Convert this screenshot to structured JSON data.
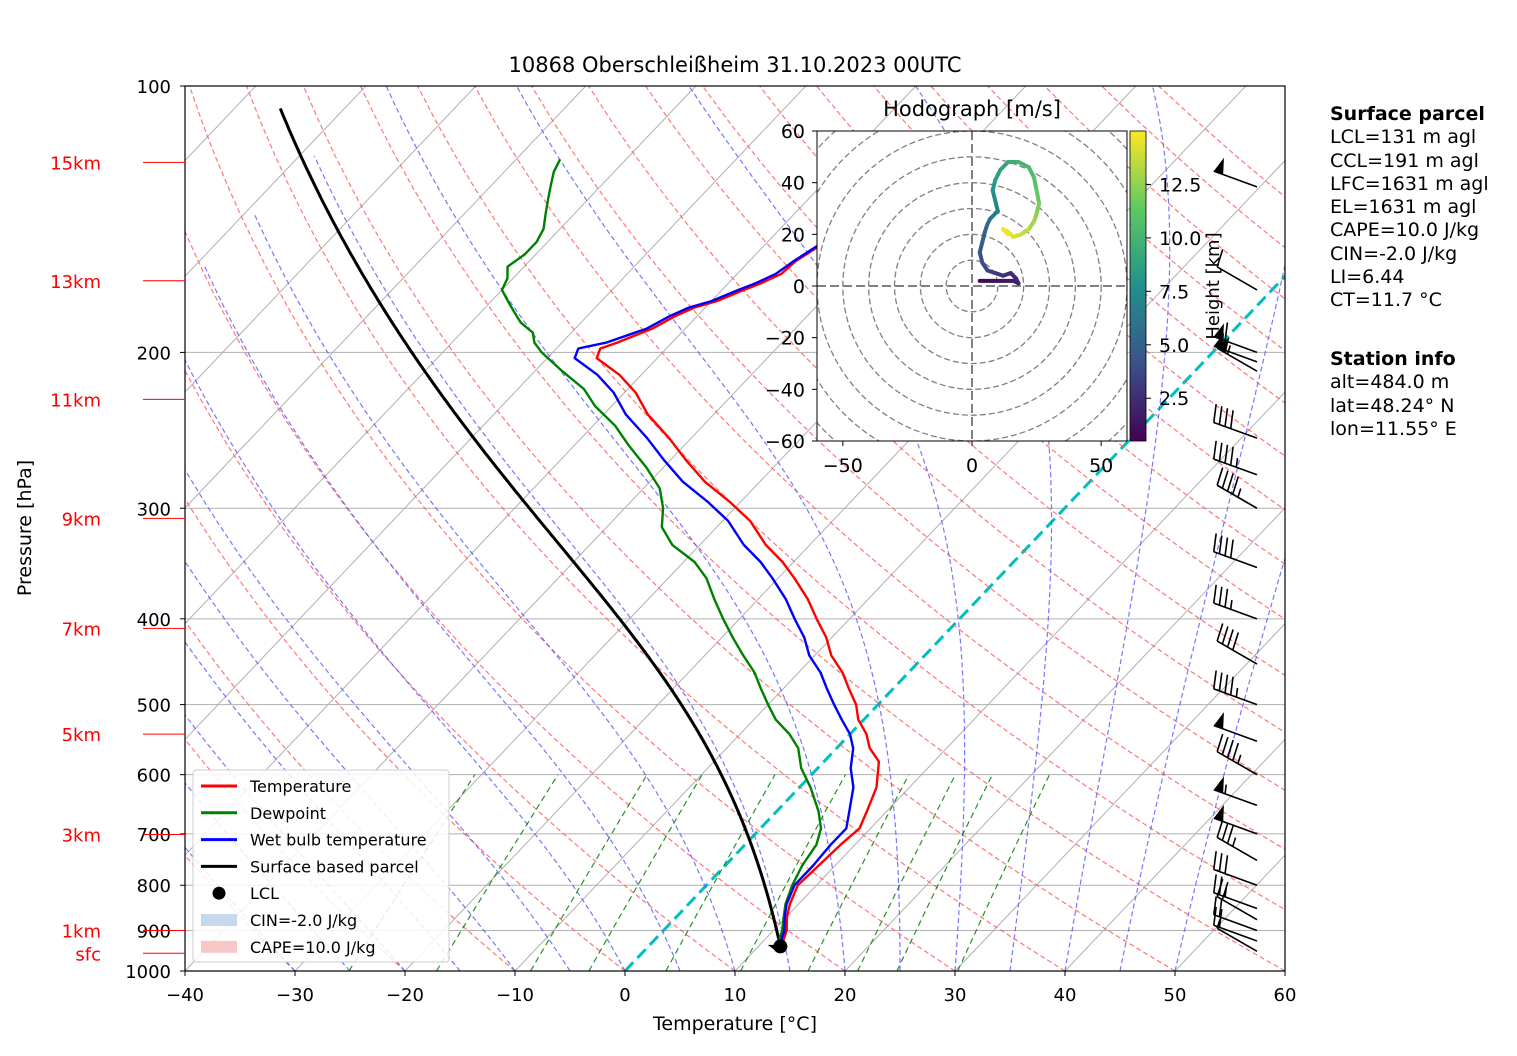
{
  "chart_data": {
    "type": "skew-t",
    "title": "10868 Oberschleißheim 31.10.2023 00UTC",
    "xlabel": "Temperature [°C]",
    "ylabel": "Pressure [hPa]",
    "xlim": [
      -40,
      60
    ],
    "ylim": [
      1000,
      100
    ],
    "y_scale": "log",
    "x_ticks": [
      "−40",
      "−30",
      "−20",
      "−10",
      "0",
      "10",
      "20",
      "30",
      "40",
      "50",
      "60"
    ],
    "y_ticks": [
      "100",
      "200",
      "300",
      "400",
      "500",
      "600",
      "700",
      "800",
      "900",
      "1000"
    ],
    "height_labels": [
      {
        "label": "sfc",
        "p": 955
      },
      {
        "label": "1km",
        "p": 900
      },
      {
        "label": "3km",
        "p": 701
      },
      {
        "label": "5km",
        "p": 540
      },
      {
        "label": "7km",
        "p": 410
      },
      {
        "label": "9km",
        "p": 308
      },
      {
        "label": "11km",
        "p": 226
      },
      {
        "label": "13km",
        "p": 166
      },
      {
        "label": "15km",
        "p": 122
      }
    ],
    "zero_isotherm_color": "#00bfbf",
    "series": [
      {
        "name": "Temperature",
        "color": "#ff0000",
        "points": [
          [
            12.3,
            950
          ],
          [
            11.9,
            930
          ],
          [
            11.2,
            900
          ],
          [
            10.1,
            870
          ],
          [
            9.2,
            840
          ],
          [
            8.3,
            800
          ],
          [
            8.5,
            760
          ],
          [
            8.7,
            720
          ],
          [
            9.0,
            690
          ],
          [
            8.2,
            660
          ],
          [
            7.0,
            620
          ],
          [
            5.0,
            580
          ],
          [
            3.0,
            560
          ],
          [
            1.5,
            540
          ],
          [
            -0.5,
            520
          ],
          [
            -2.0,
            500
          ],
          [
            -4.0,
            480
          ],
          [
            -6.0,
            460
          ],
          [
            -8.5,
            440
          ],
          [
            -10.5,
            420
          ],
          [
            -13.0,
            400
          ],
          [
            -15.5,
            380
          ],
          [
            -18.5,
            360
          ],
          [
            -21.0,
            345
          ],
          [
            -24.0,
            330
          ],
          [
            -27.5,
            310
          ],
          [
            -31.0,
            295
          ],
          [
            -35.0,
            280
          ],
          [
            -38.5,
            265
          ],
          [
            -42.0,
            250
          ],
          [
            -46.0,
            235
          ],
          [
            -49.0,
            222
          ],
          [
            -52.0,
            212
          ],
          [
            -55.5,
            203
          ],
          [
            -56.0,
            198
          ],
          [
            -55.0,
            195
          ],
          [
            -53.0,
            188
          ],
          [
            -52.0,
            182
          ],
          [
            -51.0,
            178
          ],
          [
            -49.5,
            175
          ],
          [
            -48.0,
            170
          ],
          [
            -47.0,
            167
          ],
          [
            -46.0,
            163
          ],
          [
            -45.8,
            158
          ],
          [
            -45.0,
            152
          ],
          [
            -44.0,
            146
          ],
          [
            -43.0,
            140
          ],
          [
            -41.5,
            136
          ],
          [
            -40.5,
            133
          ],
          [
            -40.0,
            128
          ],
          [
            -39.5,
            123
          ],
          [
            -38.0,
            120
          ]
        ]
      },
      {
        "name": "Dewpoint",
        "color": "#008000",
        "points": [
          [
            12.0,
            950
          ],
          [
            11.5,
            930
          ],
          [
            10.8,
            900
          ],
          [
            9.8,
            870
          ],
          [
            8.8,
            840
          ],
          [
            7.8,
            800
          ],
          [
            7.0,
            760
          ],
          [
            6.5,
            720
          ],
          [
            5.5,
            690
          ],
          [
            3.8,
            660
          ],
          [
            1.0,
            620
          ],
          [
            -1.5,
            590
          ],
          [
            -3.5,
            560
          ],
          [
            -5.5,
            540
          ],
          [
            -8.0,
            520
          ],
          [
            -10.0,
            500
          ],
          [
            -12.0,
            480
          ],
          [
            -14.0,
            460
          ],
          [
            -16.5,
            440
          ],
          [
            -19.0,
            420
          ],
          [
            -21.5,
            400
          ],
          [
            -24.0,
            380
          ],
          [
            -26.5,
            360
          ],
          [
            -29.0,
            345
          ],
          [
            -32.5,
            330
          ],
          [
            -35.0,
            315
          ],
          [
            -36.5,
            300
          ],
          [
            -38.5,
            285
          ],
          [
            -41.5,
            270
          ],
          [
            -45.0,
            255
          ],
          [
            -48.0,
            242
          ],
          [
            -51.5,
            230
          ],
          [
            -54.0,
            220
          ],
          [
            -57.5,
            210
          ],
          [
            -61.0,
            200
          ],
          [
            -62.5,
            195
          ],
          [
            -63.5,
            190
          ],
          [
            -65.5,
            185
          ],
          [
            -67.0,
            180
          ],
          [
            -68.5,
            175
          ],
          [
            -70.0,
            170
          ],
          [
            -70.5,
            165
          ],
          [
            -71.5,
            160
          ],
          [
            -71.0,
            155
          ],
          [
            -71.0,
            150
          ],
          [
            -71.5,
            145
          ],
          [
            -72.5,
            140
          ],
          [
            -73.5,
            135
          ],
          [
            -74.5,
            130
          ],
          [
            -75.5,
            125
          ],
          [
            -76.0,
            121
          ]
        ]
      },
      {
        "name": "Wet bulb temperature",
        "color": "#0000ff",
        "points": [
          [
            12.1,
            950
          ],
          [
            11.7,
            930
          ],
          [
            11.0,
            900
          ],
          [
            9.9,
            870
          ],
          [
            8.9,
            840
          ],
          [
            8.0,
            800
          ],
          [
            8.0,
            760
          ],
          [
            7.8,
            720
          ],
          [
            7.8,
            690
          ],
          [
            6.6,
            660
          ],
          [
            4.9,
            620
          ],
          [
            3.0,
            590
          ],
          [
            1.5,
            560
          ],
          [
            0.0,
            540
          ],
          [
            -2.0,
            520
          ],
          [
            -4.0,
            500
          ],
          [
            -6.0,
            480
          ],
          [
            -8.0,
            460
          ],
          [
            -10.5,
            440
          ],
          [
            -12.5,
            420
          ],
          [
            -15.0,
            400
          ],
          [
            -17.5,
            380
          ],
          [
            -20.5,
            360
          ],
          [
            -23.0,
            345
          ],
          [
            -26.0,
            330
          ],
          [
            -29.5,
            310
          ],
          [
            -33.0,
            295
          ],
          [
            -37.0,
            280
          ],
          [
            -40.5,
            265
          ],
          [
            -44.0,
            250
          ],
          [
            -48.0,
            235
          ],
          [
            -51.0,
            222
          ],
          [
            -54.0,
            212
          ],
          [
            -57.5,
            203
          ],
          [
            -58.0,
            198
          ],
          [
            -56.0,
            195
          ],
          [
            -53.5,
            188
          ],
          [
            -52.5,
            182
          ],
          [
            -51.5,
            178
          ],
          [
            -50.0,
            175
          ],
          [
            -48.5,
            170
          ],
          [
            -47.5,
            167
          ],
          [
            -46.5,
            163
          ],
          [
            -46.0,
            158
          ],
          [
            -45.2,
            152
          ],
          [
            -44.2,
            146
          ],
          [
            -43.2,
            140
          ],
          [
            -41.7,
            136
          ],
          [
            -40.7,
            133
          ],
          [
            -40.2,
            128
          ],
          [
            -39.7,
            123
          ],
          [
            -38.2,
            120
          ]
        ]
      },
      {
        "name": "Surface based parcel",
        "color": "#000000",
        "points": []
      }
    ],
    "lcl": {
      "label": "LCL",
      "t": 12.0,
      "p": 938
    },
    "legend": [
      {
        "label": "Temperature",
        "color": "#ff0000",
        "kind": "line"
      },
      {
        "label": "Dewpoint",
        "color": "#008000",
        "kind": "line"
      },
      {
        "label": "Wet bulb temperature",
        "color": "#0000ff",
        "kind": "line"
      },
      {
        "label": "Surface based parcel",
        "color": "#000000",
        "kind": "line"
      },
      {
        "label": "LCL",
        "color": "#000000",
        "kind": "dot"
      },
      {
        "label": "CIN=-2.0 J/kg",
        "color": "#c6d9ec",
        "kind": "patch"
      },
      {
        "label": "CAPE=10.0 J/kg",
        "color": "#f7c6c6",
        "kind": "patch"
      }
    ],
    "legend_position": "lower-left",
    "wind_barbs": [
      [
        950,
        5
      ],
      [
        925,
        20
      ],
      [
        900,
        20
      ],
      [
        875,
        20
      ],
      [
        850,
        25
      ],
      [
        800,
        30
      ],
      [
        750,
        35
      ],
      [
        700,
        50
      ],
      [
        650,
        55
      ],
      [
        600,
        45
      ],
      [
        550,
        50
      ],
      [
        500,
        45
      ],
      [
        450,
        40
      ],
      [
        400,
        35
      ],
      [
        350,
        40
      ],
      [
        300,
        45
      ],
      [
        275,
        45
      ],
      [
        250,
        40
      ],
      [
        210,
        55
      ],
      [
        205,
        55
      ],
      [
        200,
        60
      ],
      [
        170,
        10
      ],
      [
        130,
        50
      ]
    ]
  },
  "hodograph": {
    "title": "Hodograph [m/s]",
    "xlim": [
      -60,
      60
    ],
    "ylim": [
      -60,
      60
    ],
    "x_ticks": [
      "−50",
      "0",
      "50"
    ],
    "y_ticks": [
      "60",
      "40",
      "20",
      "0",
      "−20",
      "−40",
      "−60"
    ],
    "colorbar_label": "Height [km]",
    "colorbar_ticks": [
      "2.5",
      "5.0",
      "7.5",
      "10.0",
      "12.5"
    ],
    "colorbar_range": [
      0.5,
      15
    ],
    "points": [
      [
        3,
        2,
        0.5
      ],
      [
        8,
        2,
        0.8
      ],
      [
        12,
        2,
        1.2
      ],
      [
        16,
        2,
        1.5
      ],
      [
        18,
        1,
        1.8
      ],
      [
        17,
        3,
        2.0
      ],
      [
        15,
        5,
        2.3
      ],
      [
        12,
        4,
        2.6
      ],
      [
        9,
        5,
        2.9
      ],
      [
        6,
        6,
        3.2
      ],
      [
        4,
        9,
        3.6
      ],
      [
        3,
        13,
        4.0
      ],
      [
        4,
        17,
        4.4
      ],
      [
        5,
        21,
        4.8
      ],
      [
        6,
        24,
        5.2
      ],
      [
        7,
        26,
        5.6
      ],
      [
        8,
        27,
        6.0
      ],
      [
        10,
        29,
        6.5
      ],
      [
        9,
        33,
        7.0
      ],
      [
        8,
        37,
        7.5
      ],
      [
        9,
        41,
        8.0
      ],
      [
        11,
        45,
        8.5
      ],
      [
        14,
        48,
        9.0
      ],
      [
        18,
        48,
        9.5
      ],
      [
        22,
        46,
        10.0
      ],
      [
        24,
        42,
        10.5
      ],
      [
        25,
        37,
        11.0
      ],
      [
        26,
        32,
        11.5
      ],
      [
        25,
        28,
        12.0
      ],
      [
        24,
        25,
        12.5
      ],
      [
        22,
        22,
        13.0
      ],
      [
        19,
        20,
        13.5
      ],
      [
        16,
        19,
        14.0
      ],
      [
        14,
        21,
        14.3
      ],
      [
        12,
        22,
        14.6
      ],
      [
        14,
        20,
        14.8
      ]
    ]
  },
  "info": {
    "surface_title": "Surface parcel",
    "lines": [
      "LCL=131 m agl",
      "CCL=191 m agl",
      "LFC=1631 m agl",
      "EL=1631 m agl",
      "CAPE=10.0 J/kg",
      "CIN=-2.0 J/kg",
      "LI=6.44",
      "CT=11.7 °C"
    ],
    "station_title": "Station info",
    "station_lines": [
      "alt=484.0 m",
      "lat=48.24° N",
      "lon=11.55° E"
    ]
  }
}
